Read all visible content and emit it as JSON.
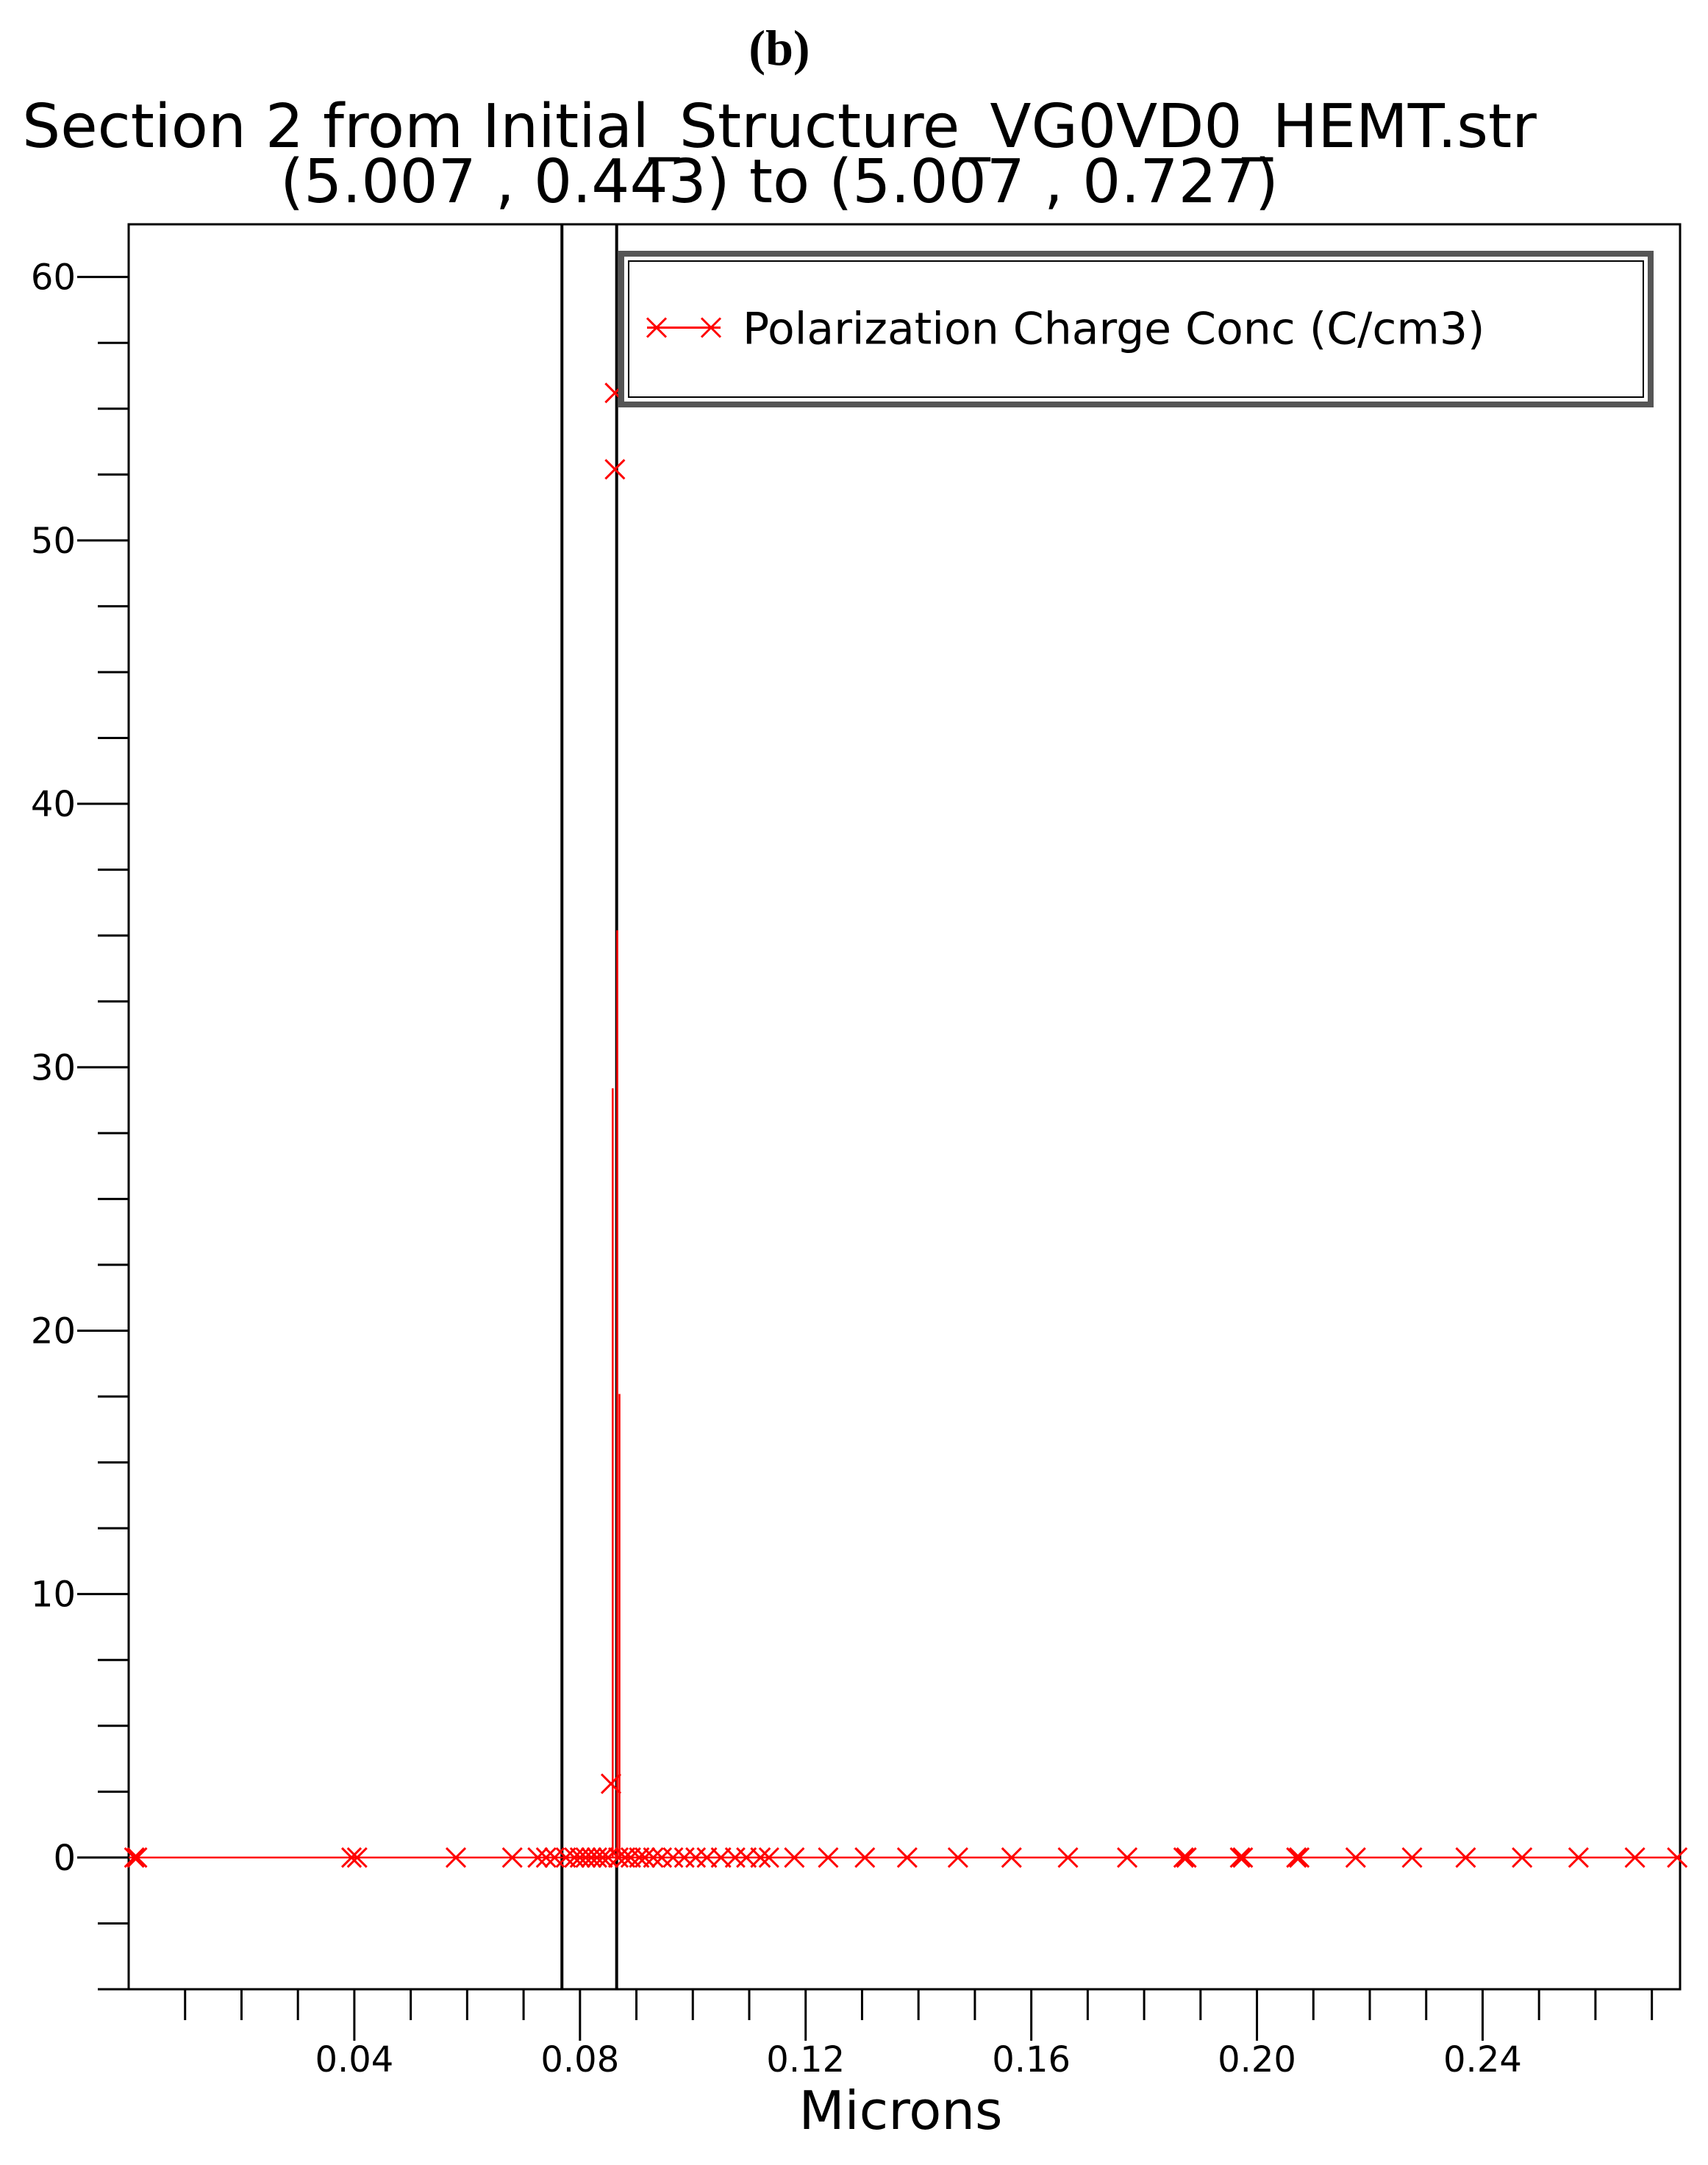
{
  "panel_label": "b",
  "chart_data": {
    "type": "scatter",
    "title": "Section 2 from Initial_Structure_VG0VD0_HEMT.str",
    "subtitle": "(5.007 , 0.443) to (5.007 , 0.727)",
    "xlabel": "Microns",
    "ylabel": "",
    "xlim": [
      0.0,
      0.275
    ],
    "ylim": [
      -5,
      62
    ],
    "grid": false,
    "legend_position": "top-right",
    "x_ticks": [
      0.04,
      0.08,
      0.12,
      0.16,
      0.2,
      0.24
    ],
    "x_tick_labels": [
      "0.04",
      "0.08",
      "0.12",
      "0.16",
      "0.20",
      "0.24"
    ],
    "x_minor_step": 0.01,
    "y_ticks": [
      0,
      10,
      20,
      30,
      40,
      50,
      60
    ],
    "y_tick_labels": [
      "0",
      "10",
      "20",
      "30",
      "40",
      "50",
      "60"
    ],
    "y_minor_step": 2.5,
    "vertical_lines": [
      0.0768,
      0.0865
    ],
    "series": [
      {
        "name": "Polarization Charge Conc (C/cm3)",
        "color": "#ff0000",
        "marker": "x",
        "points": [
          [
            0.001,
            0
          ],
          [
            0.0015,
            0
          ],
          [
            0.0395,
            0
          ],
          [
            0.0405,
            0
          ],
          [
            0.058,
            0
          ],
          [
            0.068,
            0
          ],
          [
            0.0725,
            0
          ],
          [
            0.074,
            0
          ],
          [
            0.0755,
            0
          ],
          [
            0.0775,
            0
          ],
          [
            0.079,
            0
          ],
          [
            0.08,
            0
          ],
          [
            0.081,
            0
          ],
          [
            0.082,
            0
          ],
          [
            0.083,
            0
          ],
          [
            0.084,
            0
          ],
          [
            0.085,
            0
          ],
          [
            0.0855,
            2.8
          ],
          [
            0.0862,
            52.7
          ],
          [
            0.0862,
            55.6
          ],
          [
            0.0868,
            0
          ],
          [
            0.088,
            0
          ],
          [
            0.089,
            0
          ],
          [
            0.0905,
            0
          ],
          [
            0.0915,
            0
          ],
          [
            0.093,
            0
          ],
          [
            0.0945,
            0
          ],
          [
            0.0965,
            0
          ],
          [
            0.0985,
            0
          ],
          [
            0.1005,
            0
          ],
          [
            0.1025,
            0
          ],
          [
            0.105,
            0
          ],
          [
            0.1075,
            0
          ],
          [
            0.1095,
            0
          ],
          [
            0.112,
            0
          ],
          [
            0.1135,
            0
          ],
          [
            0.118,
            0
          ],
          [
            0.124,
            0
          ],
          [
            0.1305,
            0
          ],
          [
            0.138,
            0
          ],
          [
            0.147,
            0
          ],
          [
            0.1565,
            0
          ],
          [
            0.1665,
            0
          ],
          [
            0.177,
            0
          ],
          [
            0.187,
            0
          ],
          [
            0.1875,
            0
          ],
          [
            0.197,
            0
          ],
          [
            0.1975,
            0
          ],
          [
            0.207,
            0
          ],
          [
            0.2075,
            0
          ],
          [
            0.2175,
            0
          ],
          [
            0.2275,
            0
          ],
          [
            0.237,
            0
          ],
          [
            0.247,
            0
          ],
          [
            0.257,
            0
          ],
          [
            0.267,
            0
          ],
          [
            0.2745,
            0
          ]
        ],
        "spike_segments": [
          [
            0.0858,
            29.2
          ],
          [
            0.0866,
            35.2
          ],
          [
            0.087,
            17.6
          ]
        ]
      }
    ]
  }
}
